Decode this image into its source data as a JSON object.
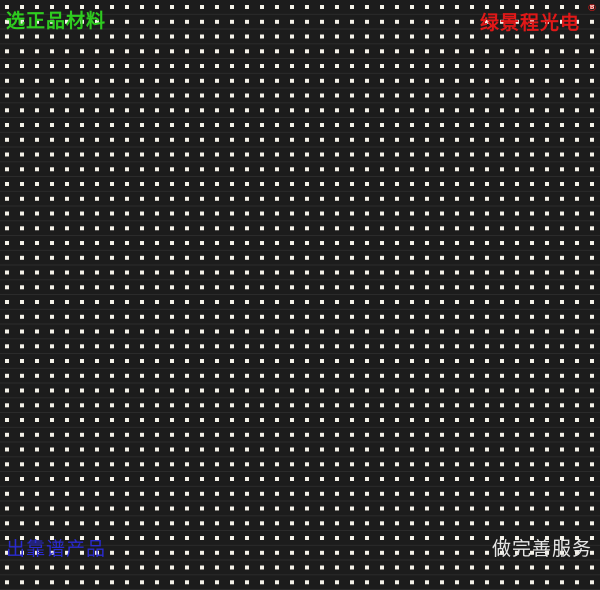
{
  "image": {
    "subject": "LED display module",
    "colors": {
      "board": "#1c1c1c",
      "led": "#f4f1e8",
      "row_line": "#2b2b2b"
    }
  },
  "captions": {
    "top_left": "选正品材料",
    "top_right": "绿景程光电",
    "registered_mark": "®",
    "bottom_left": "出靠谱产品",
    "bottom_right": "做完善服务"
  }
}
